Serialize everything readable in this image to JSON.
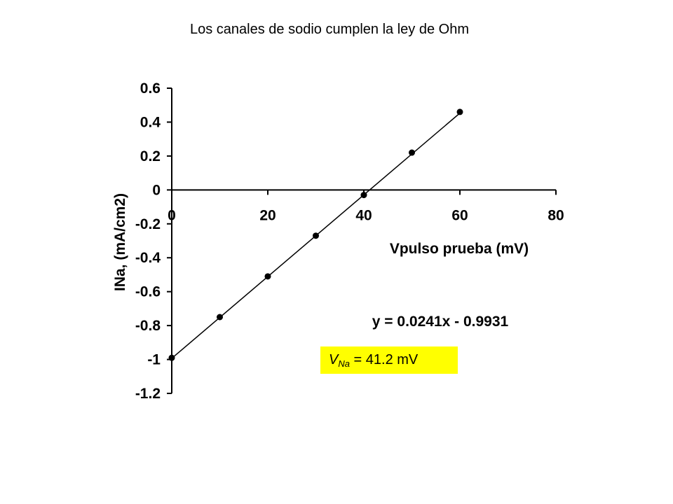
{
  "slide": {
    "title": "Los canales de sodio cumplen la ley de Ohm"
  },
  "annotation": {
    "vna_symbol": "V",
    "vna_subscript": "Na",
    "vna_value": " = 41.2 mV",
    "highlight_color": "#ffff00"
  },
  "chart_data": {
    "type": "scatter",
    "title": "",
    "xlabel": "Vpulso prueba (mV)",
    "ylabel": "INa, (mA/cm2)",
    "xlim": [
      0,
      80
    ],
    "ylim": [
      -1.2,
      0.6
    ],
    "x_ticks": [
      "0",
      "20",
      "40",
      "60",
      "80"
    ],
    "y_ticks": [
      "0.6",
      "0.4",
      "0.2",
      "0",
      "-0.2",
      "-0.4",
      "-0.6",
      "-0.8",
      "-1",
      "-1.2"
    ],
    "grid": false,
    "series": [
      {
        "x": [
          0,
          10,
          20,
          30,
          40,
          50,
          60
        ],
        "y": [
          -0.99,
          -0.75,
          -0.51,
          -0.27,
          -0.03,
          0.22,
          0.46
        ],
        "marker": "circle",
        "color": "#000000"
      }
    ],
    "trendline": {
      "equation": "y = 0.0241x - 0.9931",
      "slope": 0.0241,
      "intercept": -0.9931,
      "x_range": [
        0,
        60
      ]
    }
  }
}
